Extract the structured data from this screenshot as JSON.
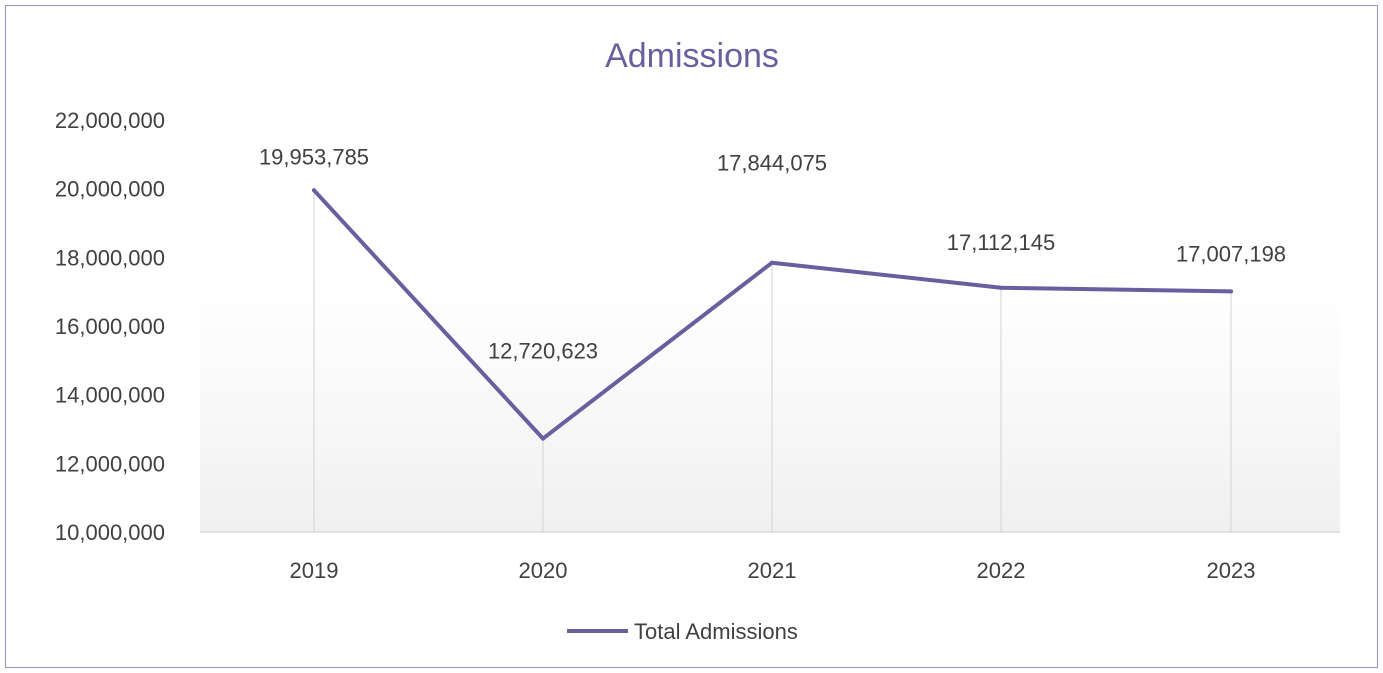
{
  "chart_data": {
    "type": "line",
    "title": "Admissions",
    "categories": [
      "2019",
      "2020",
      "2021",
      "2022",
      "2023"
    ],
    "series": [
      {
        "name": "Total Admissions",
        "values": [
          19953785,
          12720623,
          17844075,
          17112145,
          17007198
        ],
        "labels": [
          "19,953,785",
          "12,720,623",
          "17,844,075",
          "17,112,145",
          "17,007,198"
        ],
        "color": "#6a5f9e"
      }
    ],
    "ylim": [
      10000000,
      22000000
    ],
    "yticks": [
      10000000,
      12000000,
      14000000,
      16000000,
      18000000,
      20000000,
      22000000
    ],
    "ytick_labels": [
      "10,000,000",
      "12,000,000",
      "14,000,000",
      "16,000,000",
      "18,000,000",
      "20,000,000",
      "22,000,000"
    ],
    "xlabel": "",
    "ylabel": "",
    "grid": "vertical drop lines",
    "legend_position": "bottom"
  },
  "colors": {
    "line": "#6a5f9e",
    "title": "#6a5f9e",
    "frame": "#9b8fc0",
    "axis": "#d9d9d9",
    "text": "#404040"
  }
}
